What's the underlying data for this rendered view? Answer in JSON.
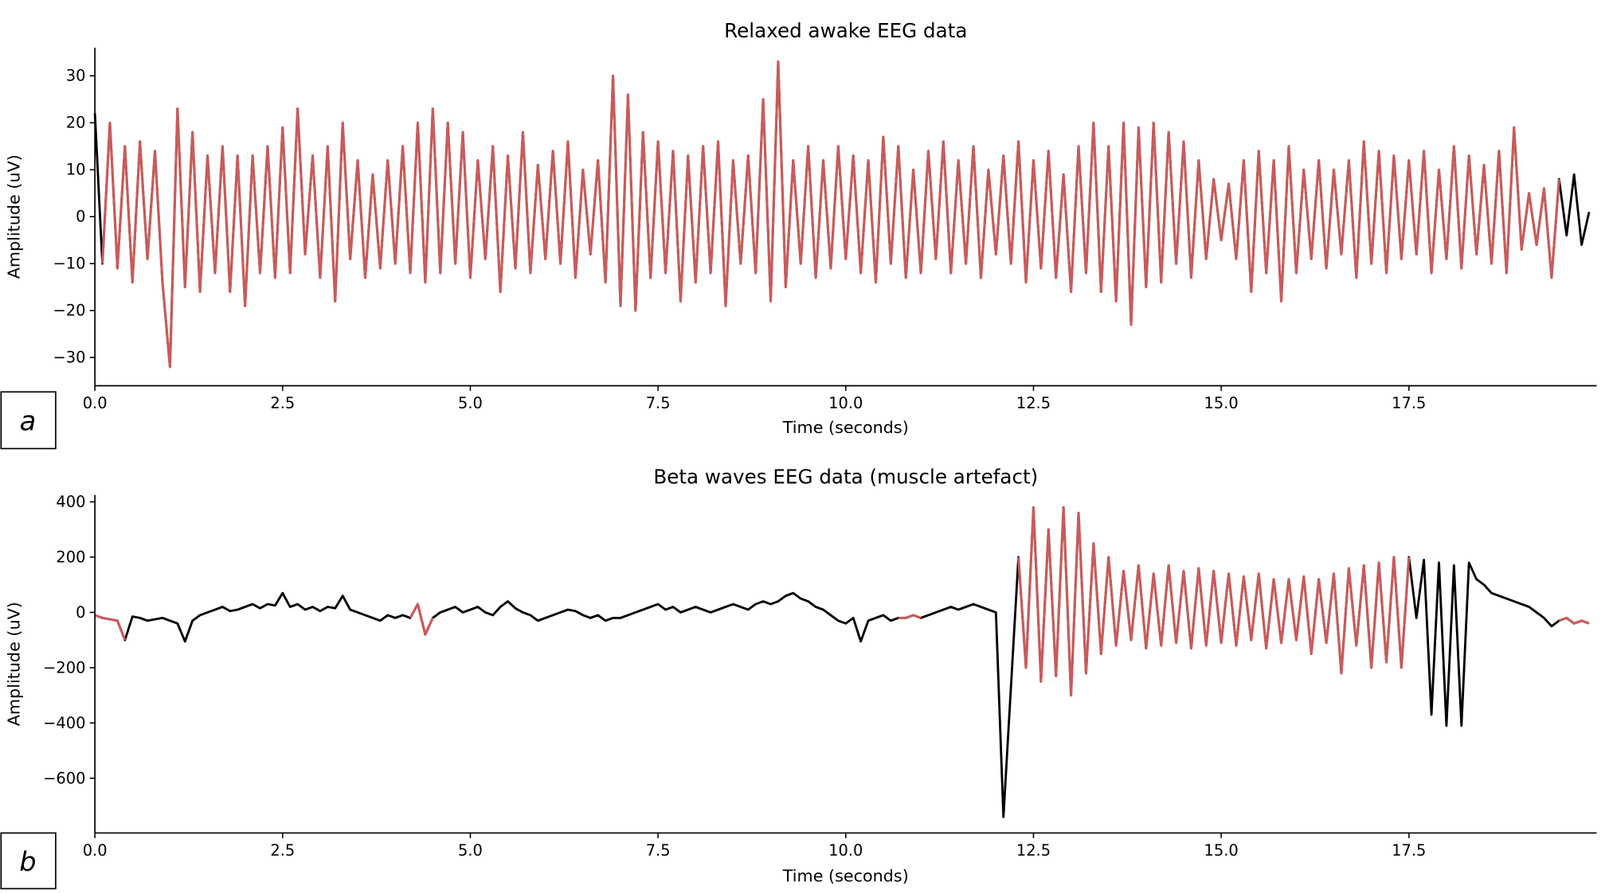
{
  "colors": {
    "highlight": "#c95b5b",
    "base": "#000000"
  },
  "chart_data": [
    {
      "type": "line",
      "panel_label": "a",
      "title": "Relaxed awake EEG data",
      "xlabel": "Time (seconds)",
      "ylabel": "Amplitude (uV)",
      "xlim": [
        0,
        20
      ],
      "ylim": [
        -36,
        36
      ],
      "xticks": [
        "0.0",
        "2.5",
        "5.0",
        "7.5",
        "10.0",
        "12.5",
        "15.0",
        "17.5"
      ],
      "xtick_values": [
        0,
        2.5,
        5,
        7.5,
        10,
        12.5,
        15,
        17.5
      ],
      "yticks": [
        "30",
        "20",
        "10",
        "0",
        "−10",
        "−20",
        "−30"
      ],
      "ytick_values": [
        30,
        20,
        10,
        0,
        -10,
        -20,
        -30
      ],
      "x_start": 0,
      "x_step": 0.1,
      "highlight_ranges": [
        [
          0.1,
          19.5
        ]
      ],
      "values": [
        22,
        -10,
        20,
        -11,
        15,
        -14,
        16,
        -9,
        14,
        -14,
        -32,
        23,
        -15,
        18,
        -16,
        13,
        -12,
        15,
        -16,
        13,
        -19,
        13,
        -12,
        15,
        -13,
        19,
        -12,
        23,
        -8,
        13,
        -13,
        15,
        -18,
        20,
        -9,
        12,
        -13,
        9,
        -11,
        12,
        -10,
        15,
        -12,
        20,
        -14,
        23,
        -12,
        20,
        -10,
        18,
        -13,
        12,
        -9,
        15,
        -16,
        13,
        -11,
        18,
        -12,
        11,
        -9,
        14,
        -10,
        16,
        -13,
        10,
        -8,
        12,
        -14,
        30,
        -19,
        26,
        -20,
        18,
        -13,
        16,
        -12,
        14,
        -18,
        13,
        -14,
        15,
        -12,
        16,
        -19,
        12,
        -10,
        13,
        -12,
        25,
        -18,
        33,
        -15,
        12,
        -10,
        15,
        -13,
        12,
        -11,
        15,
        -9,
        13,
        -12,
        12,
        -14,
        17,
        -10,
        15,
        -13,
        10,
        -12,
        14,
        -9,
        16,
        -12,
        12,
        -10,
        15,
        -13,
        10,
        -8,
        13,
        -10,
        16,
        -14,
        12,
        -11,
        14,
        -13,
        9,
        -16,
        15,
        -12,
        20,
        -16,
        15,
        -18,
        20,
        -23,
        19,
        -15,
        20,
        -14,
        18,
        -10,
        16,
        -13,
        12,
        -9,
        8,
        -5,
        7,
        -9,
        12,
        -16,
        14,
        -12,
        12,
        -18,
        15,
        -12,
        10,
        -9,
        12,
        -11,
        10,
        -8,
        12,
        -13,
        16,
        -10,
        14,
        -12,
        13,
        -9,
        12,
        -8,
        14,
        -12,
        10,
        -9,
        15,
        -11,
        13,
        -8,
        11,
        -10,
        14,
        -12,
        19,
        -7,
        5,
        -6,
        6,
        -13,
        8,
        -4,
        9,
        -6,
        1
      ]
    },
    {
      "type": "line",
      "panel_label": "b",
      "title": "Beta waves EEG data (muscle artefact)",
      "xlabel": "Time (seconds)",
      "ylabel": "Amplitude (uV)",
      "xlim": [
        0,
        20
      ],
      "ylim": [
        -798,
        425
      ],
      "xticks": [
        "0.0",
        "2.5",
        "5.0",
        "7.5",
        "10.0",
        "12.5",
        "15.0",
        "17.5"
      ],
      "xtick_values": [
        0,
        2.5,
        5,
        7.5,
        10,
        12.5,
        15,
        17.5
      ],
      "yticks": [
        "400",
        "200",
        "0",
        "−200",
        "−400",
        "−600"
      ],
      "ytick_values": [
        400,
        200,
        0,
        -200,
        -400,
        -600
      ],
      "x_start": 0,
      "x_step": 0.1,
      "highlight_ranges": [
        [
          0,
          0.4
        ],
        [
          4.2,
          4.5
        ],
        [
          10.7,
          11.0
        ],
        [
          12.3,
          17.5
        ],
        [
          19.5,
          19.9
        ]
      ],
      "values": [
        -10,
        -20,
        -25,
        -30,
        -100,
        -15,
        -20,
        -30,
        -25,
        -20,
        -30,
        -40,
        -105,
        -30,
        -10,
        0,
        10,
        20,
        5,
        10,
        20,
        30,
        15,
        30,
        25,
        70,
        20,
        30,
        10,
        20,
        5,
        20,
        15,
        60,
        10,
        0,
        -10,
        -20,
        -30,
        -10,
        -20,
        -10,
        -20,
        30,
        -80,
        -20,
        0,
        10,
        20,
        0,
        10,
        20,
        0,
        -10,
        20,
        40,
        15,
        0,
        -10,
        -30,
        -20,
        -10,
        0,
        10,
        5,
        -10,
        -20,
        -10,
        -30,
        -20,
        -20,
        -10,
        0,
        10,
        20,
        30,
        10,
        20,
        0,
        10,
        20,
        10,
        0,
        10,
        20,
        30,
        20,
        10,
        30,
        40,
        30,
        40,
        60,
        70,
        50,
        40,
        20,
        10,
        -10,
        -30,
        -40,
        -20,
        -105,
        -30,
        -20,
        -10,
        -30,
        -20,
        -20,
        -10,
        -20,
        -10,
        0,
        10,
        20,
        10,
        20,
        30,
        20,
        10,
        0,
        -740,
        -270,
        200,
        -200,
        380,
        -250,
        300,
        -230,
        380,
        -300,
        360,
        -220,
        250,
        -150,
        200,
        -120,
        150,
        -100,
        170,
        -130,
        140,
        -120,
        170,
        -110,
        150,
        -130,
        160,
        -120,
        150,
        -110,
        140,
        -120,
        130,
        -100,
        140,
        -130,
        120,
        -110,
        120,
        -100,
        130,
        -150,
        120,
        -110,
        140,
        -220,
        160,
        -120,
        170,
        -200,
        180,
        -180,
        200,
        -200,
        200,
        -20,
        190,
        -370,
        180,
        -410,
        170,
        -410,
        180,
        120,
        100,
        70,
        60,
        50,
        40,
        30,
        20,
        0,
        -20,
        -50,
        -30,
        -20,
        -40,
        -30,
        -40
      ]
    }
  ]
}
